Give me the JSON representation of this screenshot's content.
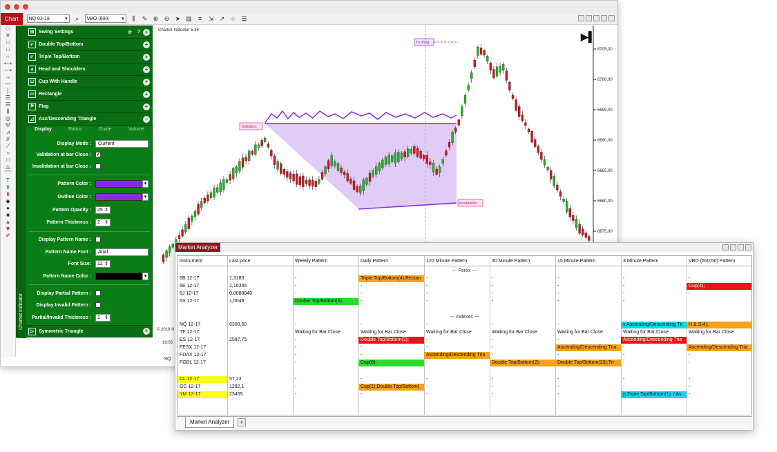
{
  "toolbar": {
    "chart_tab": "Chart",
    "instrument": "NQ 03-18",
    "dataseries": "VBO (600;",
    "icons": [
      "magnifier-icon",
      "bars-icon",
      "pencil-icon",
      "zoom-in-icon",
      "zoom-out-icon",
      "cursor-icon",
      "properties-icon",
      "strategy-icon",
      "chart-trader-icon",
      "draw-icon",
      "circle-icon",
      "list-icon"
    ]
  },
  "panel": {
    "side_label": "Chartist Indicator",
    "patterns": [
      {
        "label": "Swing Settings"
      },
      {
        "label": "Double Top/Bottom"
      },
      {
        "label": "Triple Top/Bottom"
      },
      {
        "label": "Head and Shoulders"
      },
      {
        "label": "Cup With Handle"
      },
      {
        "label": "Rectangle"
      },
      {
        "label": "Flag"
      },
      {
        "label": "Asc/Descending Triangle"
      }
    ],
    "tabs": [
      "Display",
      "Ratios",
      "Guide",
      "Volume"
    ],
    "display_mode_label": "Display Mode :",
    "display_mode_value": "Current",
    "validation_label": "Validation at bar Close :",
    "invalidation_label": "Invalidation at bar Close :",
    "pattern_color_label": "Pattern Color :",
    "outline_color_label": "Outline Color :",
    "opacity_label": "Pattern Opacity :",
    "opacity_value": "25",
    "thickness_label": "Pattern Thickness :",
    "thickness_value": "2",
    "display_name_label": "Display Pattern Name :",
    "name_font_label": "Pattern Name Font :",
    "name_font_value": "Arial",
    "font_size_label": "Font Size:",
    "font_size_value": "12",
    "name_color_label": "Pattern Name Color :",
    "partial_label": "Display Partial Pattern :",
    "invalid_label": "Display Invalid Pattern :",
    "partial_thickness_label": "Partial/Invalid Thickness :",
    "partial_thickness_value": "1",
    "last_pattern": "Symmetric Triangle",
    "colors": {
      "pattern": "#8a2be2",
      "outline": "#8a2be2",
      "name": "#000000"
    }
  },
  "chart": {
    "title": "Chartist Indicator 5.36",
    "copyright": "© 2018 N",
    "time_label": "16:05",
    "bottom_tab": "NQ",
    "price_labels": [
      "6705,00",
      "6700,00",
      "6695,00",
      "6690,00",
      "6685,00",
      "6680,00",
      "6675,00"
    ],
    "validation_label": "Validation",
    "invalidation_label": "Invalidation",
    "pattern_tag": "Tri. Prog."
  },
  "market_analyzer": {
    "title": "Market Analyzer",
    "tab": "Market Analyzer",
    "columns": [
      "Instrument",
      "Last price",
      "Weekly Pattern",
      "Daily Pattern",
      "120 Minute Pattern",
      "30 Minute Pattern",
      "15 Minute Pattern",
      "3 Minute Pattern",
      "VBO (600;50) Pattern"
    ],
    "groups": {
      "forex": "--- Forex ---",
      "indexes": "--- Indexes ---"
    },
    "forex": [
      {
        "instrument": "6B 12-17",
        "last": "1,3183",
        "weekly": "-",
        "daily": "Triple Top/Bottom(4);Rectan",
        "m120": "-",
        "m30": "-",
        "m15": "-",
        "m3": "-",
        "vbo": "-"
      },
      {
        "instrument": "6E 12-17",
        "last": "1,16345",
        "weekly": "-",
        "daily": "-",
        "m120": "-",
        "m30": "-",
        "m15": "-",
        "m3": "-",
        "vbo": "Cup(4);"
      },
      {
        "instrument": "6J 12-17",
        "last": "0,0088040",
        "weekly": "-",
        "daily": "-",
        "m120": "-",
        "m30": "-",
        "m15": "-",
        "m3": "-",
        "vbo": "-"
      },
      {
        "instrument": "6S 12-17",
        "last": "1,0049",
        "weekly": "Double Top/Bottom(6);",
        "daily": "-",
        "m120": "-",
        "m30": "-",
        "m15": "-",
        "m3": "-",
        "vbo": ""
      }
    ],
    "indexes": [
      {
        "instrument": "NQ 12-17",
        "last": "6308,50",
        "weekly": "-",
        "daily": "-",
        "m120": "-",
        "m30": "-",
        "m15": "-",
        "m3": "v Ascending/Descending Tri",
        "vbo": "H & S(4);"
      },
      {
        "instrument": "TF 12-17",
        "last": "",
        "weekly": "Waiting for Bar Close",
        "daily": "Waiting for Bar Close",
        "m120": "Waiting for Bar Close",
        "m30": "Waiting for Bar Close",
        "m15": "Waiting for Bar Close",
        "m3": "Waiting for Bar Close",
        "vbo": "Waiting for Bar Close"
      },
      {
        "instrument": "ES 12-17",
        "last": "2587,75",
        "weekly": "-",
        "daily": "Double Top/Bottom(3);",
        "m120": "-",
        "m30": "-",
        "m15": "-",
        "m3": "Ascending/Descending Tria",
        "vbo": "-"
      },
      {
        "instrument": "FESX 12-17",
        "last": "",
        "weekly": "-",
        "daily": "-",
        "m120": "-",
        "m30": "-",
        "m15": "Ascending/Descending Tria",
        "m3": "-",
        "vbo": "Ascending/Descending Tria"
      },
      {
        "instrument": "FDAX 12-17",
        "last": "",
        "weekly": "-",
        "daily": "-",
        "m120": "Ascending/Descending Tria",
        "m30": "-",
        "m15": "-",
        "m3": "-",
        "vbo": "-"
      },
      {
        "instrument": "FGBL 12-17",
        "last": "",
        "weekly": "-",
        "daily": "Cup(6);",
        "m120": "-",
        "m30": "Double Top/Bottom(2);",
        "m15": "Double Top/Bottom(33);Tri",
        "m3": "-",
        "vbo": "-"
      }
    ],
    "commodities": [
      {
        "instrument": "CL 12-17",
        "last": "57,23",
        "weekly": "-",
        "daily": "-",
        "m120": "-",
        "m30": "-",
        "m15": "-",
        "m3": "-",
        "vbo": "-"
      },
      {
        "instrument": "GC 12-17",
        "last": "1282,1",
        "weekly": "-",
        "daily": "Cup(1);Double Top/Bottom(",
        "m120": "-",
        "m30": "-",
        "m15": "-",
        "m3": "-",
        "vbo": "-"
      },
      {
        "instrument": "YM 12-17",
        "last": "23465",
        "weekly": "-",
        "daily": "-",
        "m120": "-",
        "m30": "-",
        "m15": "-",
        "m3": "p;Triple Top/Bottom(1); / As",
        "vbo": "-"
      }
    ],
    "colors": {
      "orange": "#f7a21a",
      "red": "#e8151b",
      "green": "#2bdc2b",
      "cyan": "#13d6f2",
      "yellow": "#ffff1a"
    }
  }
}
